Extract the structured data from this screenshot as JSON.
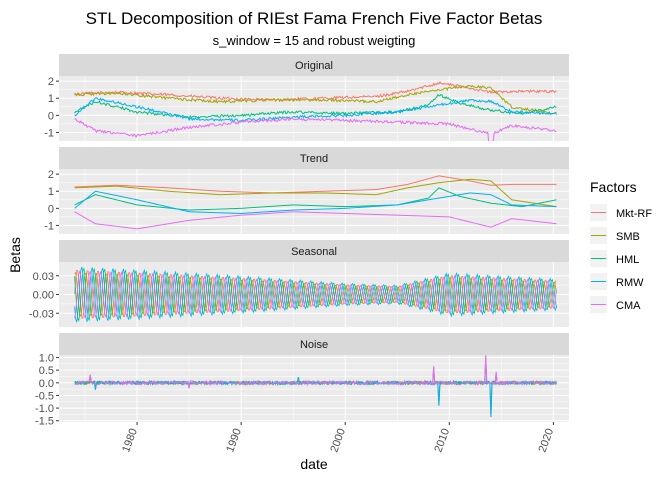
{
  "chart_data": {
    "type": "line",
    "title": "STL Decomposition of RIEst Fama French Five Factor Betas",
    "subtitle": "s_window = 15 and robust weigting",
    "xlabel": "date",
    "ylabel": "Betas",
    "x_range": [
      1972.5,
      2021.5
    ],
    "x_ticks": [
      1980,
      1990,
      2000,
      2010,
      2020
    ],
    "x_tick_labels": [
      "1980",
      "1990",
      "2000",
      "2010",
      "2020"
    ],
    "data_start": 1974.0,
    "data_end": 2020.3,
    "legend": {
      "title": "Factors",
      "placement": "right",
      "entries": [
        "Mkt-RF",
        "SMB",
        "HML",
        "RMW",
        "CMA"
      ]
    },
    "colors": {
      "Mkt-RF": "#F8766D",
      "SMB": "#A3A500",
      "HML": "#00BF7D",
      "RMW": "#00B0F6",
      "CMA": "#E76BF3"
    },
    "panels": [
      {
        "name": "Original",
        "ylim": [
          -1.5,
          2.3
        ],
        "y_ticks": [
          2,
          1,
          0,
          -1
        ],
        "y_tick_labels": [
          "2",
          "1",
          "0",
          "-1"
        ],
        "series": [
          {
            "name": "Mkt-RF",
            "x": [
              1974,
              1978,
              1983,
              1988,
              1993,
              1998,
              2003,
              2006,
              2009,
              2012,
              2014,
              2016,
              2020.3
            ],
            "y": [
              1.25,
              1.35,
              1.2,
              1.0,
              0.9,
              1.0,
              1.1,
              1.4,
              1.9,
              1.6,
              1.35,
              1.4,
              1.4
            ]
          },
          {
            "name": "SMB",
            "x": [
              1974,
              1978,
              1983,
              1988,
              1993,
              1998,
              2003,
              2006,
              2009,
              2012,
              2014,
              2016,
              2020.3
            ],
            "y": [
              1.2,
              1.3,
              1.0,
              0.8,
              0.9,
              0.9,
              0.8,
              1.2,
              1.5,
              1.7,
              1.6,
              0.5,
              0.1
            ]
          },
          {
            "name": "HML",
            "x": [
              1974,
              1976,
              1980,
              1985,
              1990,
              1995,
              2000,
              2005,
              2008,
              2009,
              2011,
              2014,
              2017,
              2020.3
            ],
            "y": [
              0.2,
              0.8,
              0.2,
              -0.1,
              0.0,
              0.2,
              0.1,
              0.2,
              0.6,
              1.2,
              0.7,
              0.3,
              0.1,
              0.5
            ]
          },
          {
            "name": "RMW",
            "x": [
              1974,
              1976,
              1980,
              1985,
              1990,
              1995,
              2000,
              2005,
              2009,
              2012,
              2014,
              2016,
              2020.3
            ],
            "y": [
              0.0,
              1.0,
              0.5,
              -0.2,
              -0.3,
              -0.1,
              0.0,
              0.2,
              0.6,
              0.9,
              0.8,
              0.2,
              0.1
            ]
          },
          {
            "name": "CMA",
            "x": [
              1974,
              1976,
              1980,
              1985,
              1990,
              1995,
              2000,
              2005,
              2010,
              2014,
              2016,
              2020.3
            ],
            "y": [
              -0.2,
              -0.9,
              -1.2,
              -0.7,
              -0.4,
              -0.2,
              -0.3,
              -0.4,
              -0.5,
              -1.1,
              -0.6,
              -0.9
            ]
          }
        ]
      },
      {
        "name": "Trend",
        "ylim": [
          -1.5,
          2.3
        ],
        "y_ticks": [
          2,
          1,
          0,
          -1
        ],
        "y_tick_labels": [
          "2",
          "1",
          "0",
          "-1"
        ],
        "series": [
          {
            "name": "Mkt-RF",
            "x": [
              1974,
              1978,
              1983,
              1988,
              1993,
              1998,
              2003,
              2006,
              2009,
              2012,
              2014,
              2016,
              2020.3
            ],
            "y": [
              1.25,
              1.35,
              1.2,
              1.0,
              0.9,
              1.0,
              1.1,
              1.4,
              1.9,
              1.6,
              1.35,
              1.4,
              1.4
            ]
          },
          {
            "name": "SMB",
            "x": [
              1974,
              1978,
              1983,
              1988,
              1993,
              1998,
              2003,
              2006,
              2009,
              2012,
              2014,
              2016,
              2020.3
            ],
            "y": [
              1.2,
              1.3,
              1.0,
              0.8,
              0.9,
              0.9,
              0.8,
              1.2,
              1.5,
              1.7,
              1.6,
              0.5,
              0.1
            ]
          },
          {
            "name": "HML",
            "x": [
              1974,
              1976,
              1980,
              1985,
              1990,
              1995,
              2000,
              2005,
              2008,
              2009,
              2011,
              2014,
              2017,
              2020.3
            ],
            "y": [
              0.2,
              0.8,
              0.2,
              -0.1,
              0.0,
              0.2,
              0.1,
              0.2,
              0.6,
              1.2,
              0.7,
              0.3,
              0.1,
              0.5
            ]
          },
          {
            "name": "RMW",
            "x": [
              1974,
              1976,
              1980,
              1985,
              1990,
              1995,
              2000,
              2005,
              2009,
              2012,
              2014,
              2016,
              2020.3
            ],
            "y": [
              0.0,
              1.0,
              0.5,
              -0.2,
              -0.3,
              -0.1,
              0.0,
              0.2,
              0.6,
              0.9,
              0.8,
              0.2,
              0.1
            ]
          },
          {
            "name": "CMA",
            "x": [
              1974,
              1976,
              1980,
              1985,
              1990,
              1995,
              2000,
              2005,
              2010,
              2014,
              2016,
              2020.3
            ],
            "y": [
              -0.2,
              -0.9,
              -1.2,
              -0.7,
              -0.4,
              -0.2,
              -0.3,
              -0.4,
              -0.5,
              -1.1,
              -0.6,
              -0.9
            ]
          }
        ]
      },
      {
        "name": "Seasonal",
        "ylim": [
          -0.052,
          0.052
        ],
        "y_ticks": [
          0.03,
          0.0,
          -0.03
        ],
        "y_tick_labels": [
          "0.03",
          "0.00",
          "-0.03"
        ],
        "amplitude_envelope": {
          "x": [
            1974,
            1980,
            1990,
            2000,
            2005,
            2010,
            2015,
            2020.3
          ],
          "y": [
            0.045,
            0.04,
            0.03,
            0.018,
            0.015,
            0.035,
            0.03,
            0.025
          ]
        },
        "series": [
          {
            "name": "Mkt-RF",
            "amplitude": 0.9
          },
          {
            "name": "SMB",
            "amplitude": 0.8
          },
          {
            "name": "HML",
            "amplitude": 0.95
          },
          {
            "name": "RMW",
            "amplitude": 1.0
          },
          {
            "name": "CMA",
            "amplitude": 0.85
          }
        ]
      },
      {
        "name": "Noise",
        "ylim": [
          -1.55,
          1.1
        ],
        "y_ticks": [
          1.0,
          0.5,
          0.0,
          -0.5,
          -1.0,
          -1.5
        ],
        "y_tick_labels": [
          "1.0",
          "0.5",
          "0.0",
          "-0.5",
          "-1.0",
          "-1.5"
        ],
        "base_amplitude": 0.07,
        "spikes": [
          {
            "x": 1975.5,
            "y": 0.3
          },
          {
            "x": 1976.0,
            "y": -0.3
          },
          {
            "x": 1985.0,
            "y": -0.2
          },
          {
            "x": 1995.5,
            "y": 0.25
          },
          {
            "x": 2008.5,
            "y": 0.6
          },
          {
            "x": 2009.0,
            "y": -1.0
          },
          {
            "x": 2013.5,
            "y": 1.0
          },
          {
            "x": 2014.0,
            "y": -1.5
          },
          {
            "x": 2014.5,
            "y": 0.4
          }
        ],
        "series": [
          {
            "name": "Mkt-RF",
            "amplitude": 0.8
          },
          {
            "name": "SMB",
            "amplitude": 0.9
          },
          {
            "name": "HML",
            "amplitude": 1.0
          },
          {
            "name": "RMW",
            "amplitude": 0.9
          },
          {
            "name": "CMA",
            "amplitude": 1.1
          }
        ]
      }
    ]
  }
}
